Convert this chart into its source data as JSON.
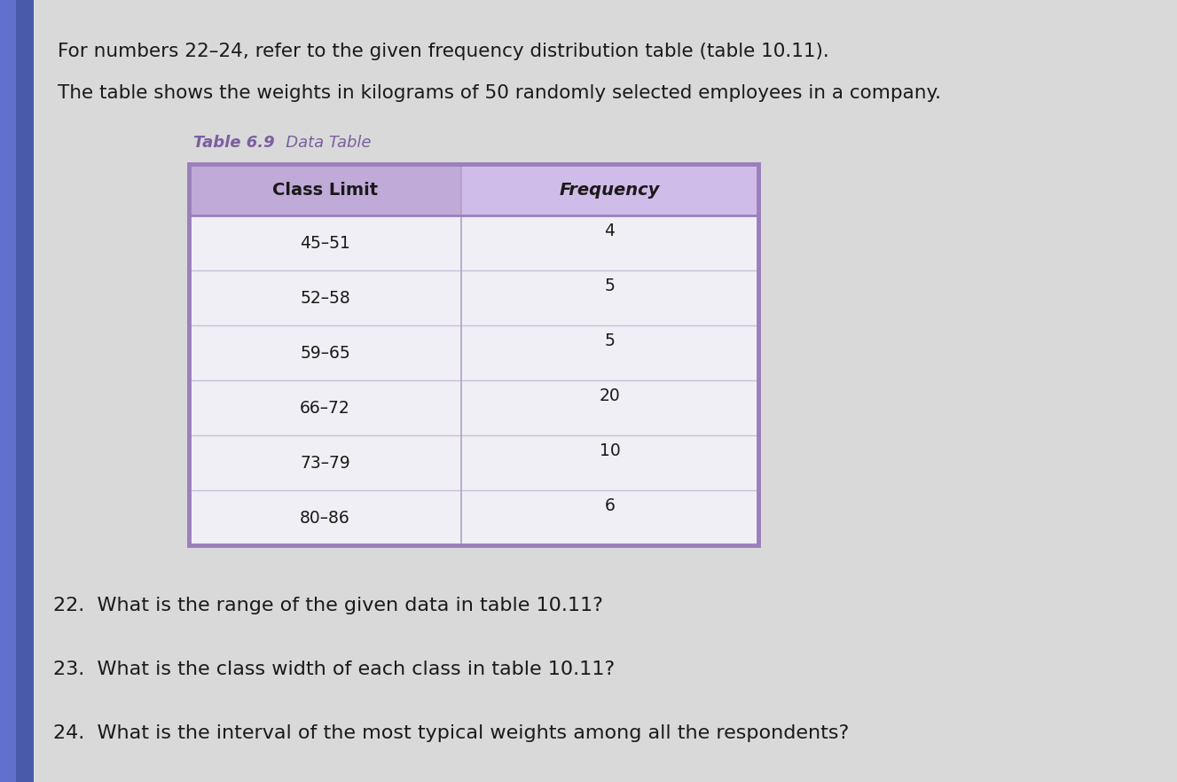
{
  "page_background": "#d9d9d9",
  "intro_line1": "For numbers 22–24, refer to the given frequency distribution table (table 10.11).",
  "intro_line2": "The table shows the weights in kilograms of 50 randomly selected employees in a company.",
  "table_label_bold": "Table 6.9",
  "table_label_normal": "   Data Table",
  "col1_header": "Class Limit",
  "col2_header": "Frequency",
  "header_bg_left": "#c0aad8",
  "header_bg_right": "#d0bce8",
  "row_bg": "#f0eff5",
  "row_divider": "#c8c0d8",
  "table_border": "#9b7fbb",
  "col_divider": "#b0a0c8",
  "class_limits": [
    "45–51",
    "52–58",
    "59–65",
    "66–72",
    "73–79",
    "80–86"
  ],
  "frequencies": [
    "4",
    "5",
    "5",
    "20",
    "10",
    "6"
  ],
  "q22": "22.  What is the range of the given data in table 10.11?",
  "q23": "23.  What is the class width of each class in table 10.11?",
  "q24": "24.  What is the interval of the most typical weights among all the respondents?",
  "text_color": "#1a1a1a",
  "table_label_color": "#7b5fa0",
  "font_size_intro": 15.5,
  "font_size_table_label": 13,
  "font_size_header": 14,
  "font_size_data": 13.5,
  "font_size_questions": 16,
  "left_strip_color1": "#3a5090",
  "left_strip_color2": "#8888cc"
}
